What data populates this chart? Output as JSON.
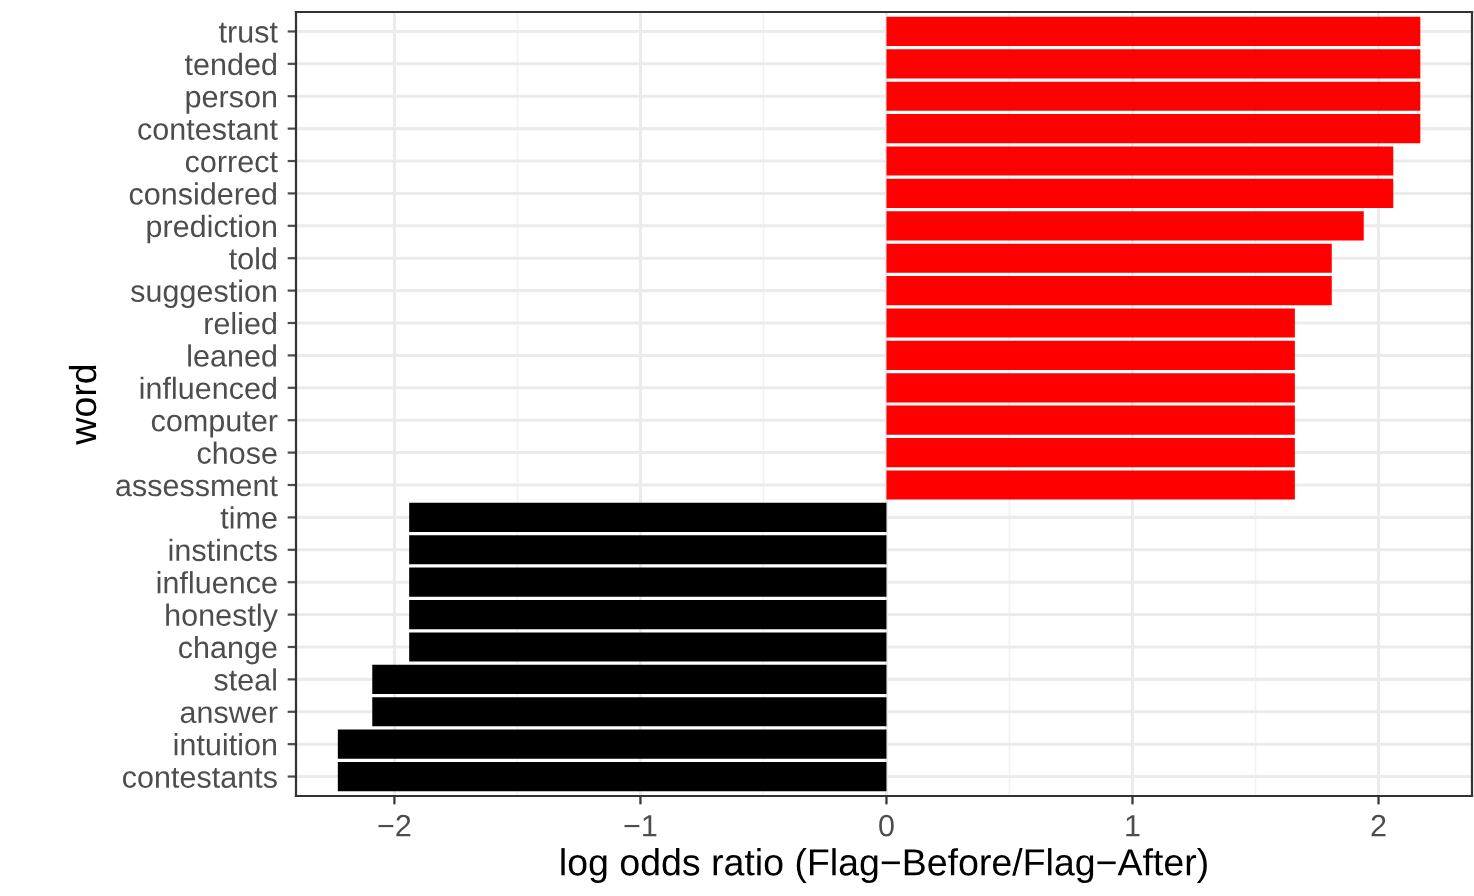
{
  "chart_data": {
    "type": "bar",
    "orientation": "horizontal",
    "xlabel": "log odds ratio (Flag−Before/Flag−After)",
    "ylabel": "word",
    "categories": [
      "trust",
      "tended",
      "person",
      "contestant",
      "correct",
      "considered",
      "prediction",
      "told",
      "suggestion",
      "relied",
      "leaned",
      "influenced",
      "computer",
      "chose",
      "assessment",
      "time",
      "instincts",
      "influence",
      "honestly",
      "change",
      "steal",
      "answer",
      "intuition",
      "contestants"
    ],
    "values": [
      2.17,
      2.17,
      2.17,
      2.17,
      2.06,
      2.06,
      1.94,
      1.81,
      1.81,
      1.66,
      1.66,
      1.66,
      1.66,
      1.66,
      1.66,
      -1.94,
      -1.94,
      -1.94,
      -1.94,
      -1.94,
      -2.09,
      -2.09,
      -2.23,
      -2.23
    ],
    "colors": [
      "#ff0000",
      "#ff0000",
      "#ff0000",
      "#ff0000",
      "#ff0000",
      "#ff0000",
      "#ff0000",
      "#ff0000",
      "#ff0000",
      "#ff0000",
      "#ff0000",
      "#ff0000",
      "#ff0000",
      "#ff0000",
      "#ff0000",
      "#000000",
      "#000000",
      "#000000",
      "#000000",
      "#000000",
      "#000000",
      "#000000",
      "#000000",
      "#000000"
    ],
    "xlim": [
      -2.4,
      2.38
    ],
    "xticks": [
      {
        "value": -2,
        "label": "−2"
      },
      {
        "value": -1,
        "label": "−1"
      },
      0,
      1,
      2
    ],
    "grid": true
  }
}
